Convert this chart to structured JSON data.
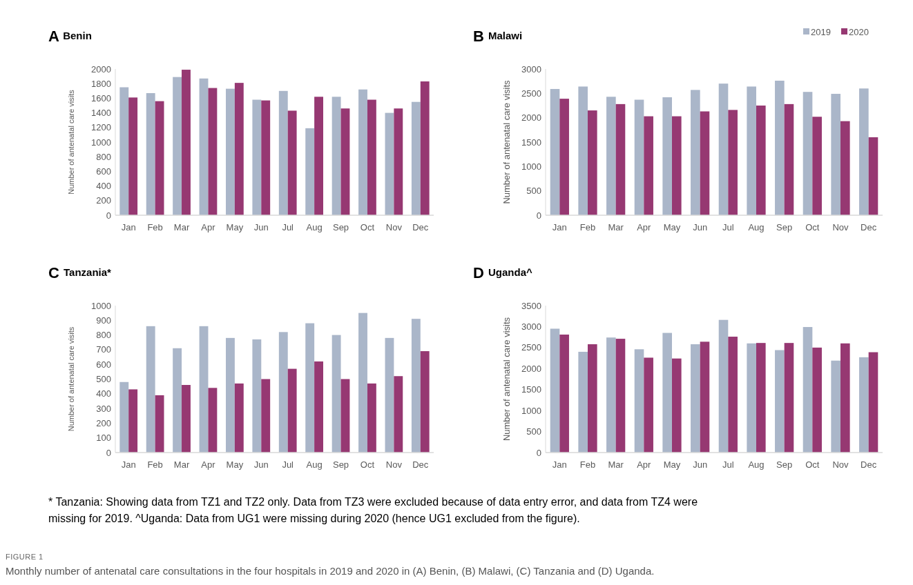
{
  "chart_data": [
    {
      "type": "bar",
      "title": "A Benin",
      "ylabel": "Number of antenatal care visits",
      "categories": [
        "Jan",
        "Feb",
        "Mar",
        "Apr",
        "May",
        "Jun",
        "Jul",
        "Aug",
        "Sep",
        "Oct",
        "Nov",
        "Dec"
      ],
      "ylim": [
        0,
        2000
      ],
      "yticks": [
        0,
        200,
        400,
        600,
        800,
        1000,
        1200,
        1400,
        1600,
        1800,
        2000
      ],
      "grid": false,
      "legend": false,
      "series": [
        {
          "color": "#aab6c9",
          "values": [
            1750,
            1670,
            1890,
            1870,
            1730,
            1580,
            1700,
            1190,
            1620,
            1720,
            1400,
            1550
          ]
        },
        {
          "color": "#963872",
          "values": [
            1610,
            1560,
            1990,
            1740,
            1810,
            1570,
            1430,
            1620,
            1460,
            1580,
            1460,
            1830
          ]
        }
      ]
    },
    {
      "type": "bar",
      "title": "B Malawi",
      "ylabel": "Number of antenatal care visits",
      "categories": [
        "Jan",
        "Feb",
        "Mar",
        "Apr",
        "May",
        "Jun",
        "Jul",
        "Aug",
        "Sep",
        "Oct",
        "Nov",
        "Dec"
      ],
      "ylim": [
        0,
        3000
      ],
      "yticks": [
        0,
        500,
        1000,
        1500,
        2000,
        2500,
        3000
      ],
      "grid": false,
      "legend": "top right",
      "series": [
        {
          "name": "2019",
          "color": "#aab6c9",
          "values": [
            2590,
            2640,
            2430,
            2370,
            2420,
            2570,
            2700,
            2640,
            2760,
            2530,
            2490,
            2600
          ]
        },
        {
          "name": "2020",
          "color": "#963872",
          "values": [
            2390,
            2150,
            2280,
            2030,
            2030,
            2130,
            2160,
            2250,
            2280,
            2020,
            1930,
            1600
          ]
        }
      ]
    },
    {
      "type": "bar",
      "title": "C Tanzania*",
      "ylabel": "Number of antenatal care visits",
      "categories": [
        "Jan",
        "Feb",
        "Mar",
        "Apr",
        "May",
        "Jun",
        "Jul",
        "Aug",
        "Sep",
        "Oct",
        "Nov",
        "Dec"
      ],
      "ylim": [
        0,
        1000
      ],
      "yticks": [
        0,
        100,
        200,
        300,
        400,
        500,
        600,
        700,
        800,
        900,
        1000
      ],
      "grid": false,
      "legend": false,
      "series": [
        {
          "color": "#aab6c9",
          "values": [
            480,
            860,
            710,
            860,
            780,
            770,
            820,
            880,
            800,
            950,
            780,
            910
          ]
        },
        {
          "color": "#963872",
          "values": [
            430,
            390,
            460,
            440,
            470,
            500,
            570,
            620,
            500,
            470,
            520,
            690
          ]
        }
      ]
    },
    {
      "type": "bar",
      "title": "D Uganda^",
      "ylabel": "Number of antenatal care visits",
      "categories": [
        "Jan",
        "Feb",
        "Mar",
        "Apr",
        "May",
        "Jun",
        "Jul",
        "Aug",
        "Sep",
        "Oct",
        "Nov",
        "Dec"
      ],
      "ylim": [
        0,
        3500
      ],
      "yticks": [
        0,
        500,
        1000,
        1500,
        2000,
        2500,
        3000,
        3500
      ],
      "grid": false,
      "legend": false,
      "annotations": [
        "* Tanzania: Showing data from TZ1 and TZ2 only. Data from TZ3 were excluded because of data entry error, and data from TZ4 were missing for 2019. ^Uganda: Data from UG1 were missing during 2020 (hence UG1 excluded from the figure).",
        "FIGURE 1",
        "Monthly number of antenatal care consultations in the four hospitals in 2019 and 2020 in (A) Benin, (B) Malawi, (C) Tanzania and (D) Uganda."
      ],
      "series": [
        {
          "color": "#aab6c9",
          "values": [
            2950,
            2400,
            2740,
            2460,
            2850,
            2580,
            3160,
            2600,
            2440,
            2990,
            2190,
            2270
          ]
        },
        {
          "color": "#963872",
          "values": [
            2810,
            2580,
            2710,
            2260,
            2240,
            2640,
            2760,
            2610,
            2610,
            2500,
            2600,
            2390
          ]
        }
      ]
    }
  ]
}
